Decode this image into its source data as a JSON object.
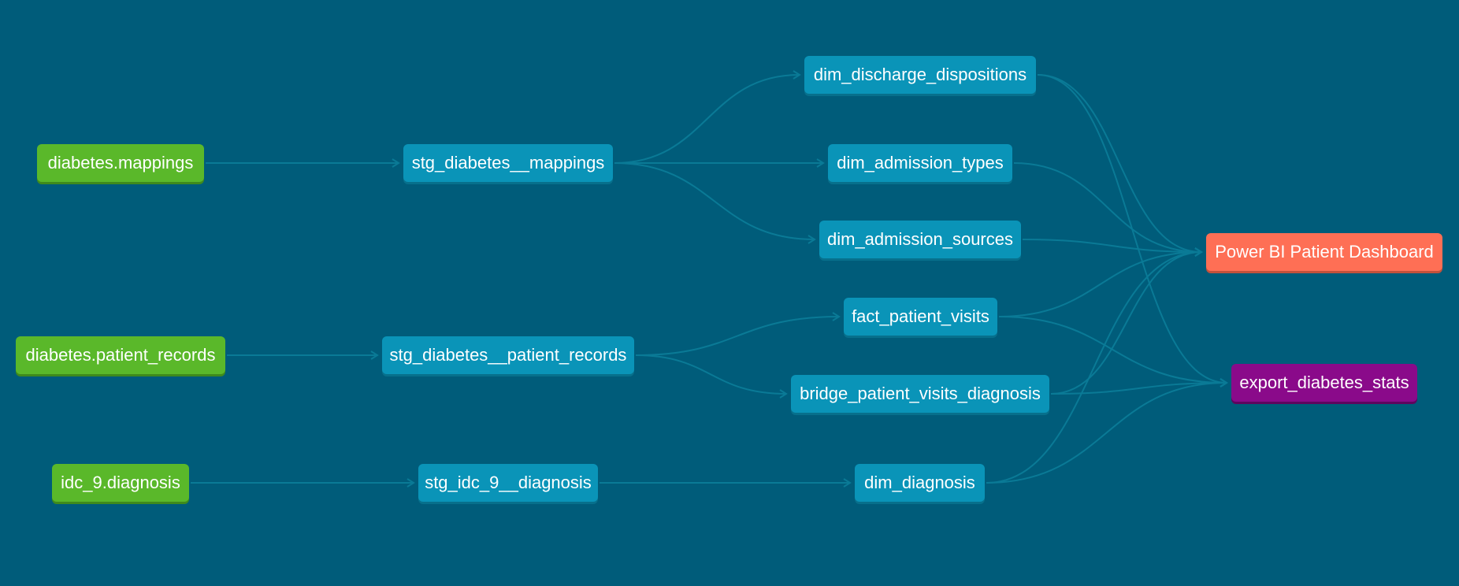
{
  "colors": {
    "background": "#005c7a",
    "edge": "#0a7a96",
    "source": "#5ab82a",
    "model": "#0a94b8",
    "exposure_dashboard": "#fe6f55",
    "exposure_export": "#8a0a8a"
  },
  "nodes": [
    {
      "id": "src_mappings",
      "label": "diabetes.mappings",
      "kind": "source"
    },
    {
      "id": "src_patient_records",
      "label": "diabetes.patient_records",
      "kind": "source"
    },
    {
      "id": "src_idc9_diagnosis",
      "label": "idc_9.diagnosis",
      "kind": "source"
    },
    {
      "id": "stg_mappings",
      "label": "stg_diabetes__mappings",
      "kind": "model"
    },
    {
      "id": "stg_patient_records",
      "label": "stg_diabetes__patient_records",
      "kind": "model"
    },
    {
      "id": "stg_idc9_diagnosis",
      "label": "stg_idc_9__diagnosis",
      "kind": "model"
    },
    {
      "id": "dim_discharge",
      "label": "dim_discharge_dispositions",
      "kind": "model"
    },
    {
      "id": "dim_admission_types",
      "label": "dim_admission_types",
      "kind": "model"
    },
    {
      "id": "dim_admission_sources",
      "label": "dim_admission_sources",
      "kind": "model"
    },
    {
      "id": "fact_patient_visits",
      "label": "fact_patient_visits",
      "kind": "model"
    },
    {
      "id": "bridge_visits_diagnosis",
      "label": "bridge_patient_visits_diagnosis",
      "kind": "model"
    },
    {
      "id": "dim_diagnosis",
      "label": "dim_diagnosis",
      "kind": "model"
    },
    {
      "id": "powerbi",
      "label": "Power BI Patient Dashboard",
      "kind": "exposure_dashboard"
    },
    {
      "id": "export_stats",
      "label": "export_diabetes_stats",
      "kind": "exposure_export"
    }
  ],
  "edges": [
    {
      "from": "src_mappings",
      "to": "stg_mappings"
    },
    {
      "from": "src_patient_records",
      "to": "stg_patient_records"
    },
    {
      "from": "src_idc9_diagnosis",
      "to": "stg_idc9_diagnosis"
    },
    {
      "from": "stg_mappings",
      "to": "dim_discharge"
    },
    {
      "from": "stg_mappings",
      "to": "dim_admission_types"
    },
    {
      "from": "stg_mappings",
      "to": "dim_admission_sources"
    },
    {
      "from": "stg_patient_records",
      "to": "fact_patient_visits"
    },
    {
      "from": "stg_patient_records",
      "to": "bridge_visits_diagnosis"
    },
    {
      "from": "stg_idc9_diagnosis",
      "to": "dim_diagnosis"
    },
    {
      "from": "dim_discharge",
      "to": "powerbi"
    },
    {
      "from": "dim_discharge",
      "to": "export_stats"
    },
    {
      "from": "dim_admission_types",
      "to": "powerbi"
    },
    {
      "from": "dim_admission_sources",
      "to": "powerbi"
    },
    {
      "from": "fact_patient_visits",
      "to": "powerbi"
    },
    {
      "from": "fact_patient_visits",
      "to": "export_stats"
    },
    {
      "from": "bridge_visits_diagnosis",
      "to": "powerbi"
    },
    {
      "from": "bridge_visits_diagnosis",
      "to": "export_stats"
    },
    {
      "from": "dim_diagnosis",
      "to": "powerbi"
    },
    {
      "from": "dim_diagnosis",
      "to": "export_stats"
    }
  ]
}
